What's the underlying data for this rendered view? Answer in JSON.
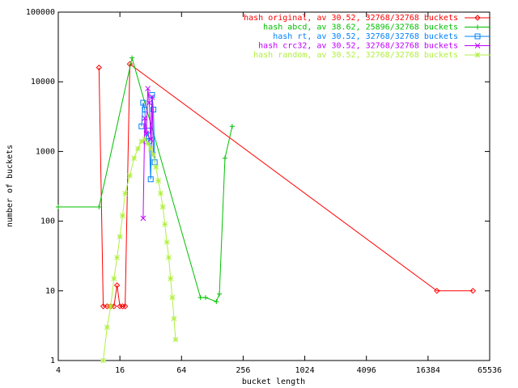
{
  "chart_data": {
    "type": "line",
    "xscale": "log",
    "yscale": "log",
    "xlabel": "bucket length",
    "ylabel": "number of buckets",
    "xlim": [
      4,
      65536
    ],
    "ylim": [
      1,
      100000
    ],
    "xticks": [
      4,
      16,
      64,
      256,
      1024,
      4096,
      16384,
      65536
    ],
    "yticks": [
      1,
      10,
      100,
      1000,
      10000,
      100000
    ],
    "legend": "top-right",
    "series": [
      {
        "name": "hash original, av 30.52, 32768/32768 buckets",
        "color": "#ff0000",
        "marker": "diamond",
        "x": [
          10,
          11,
          12,
          13,
          14,
          15,
          16,
          17,
          18,
          20,
          20000,
          45000
        ],
        "values": [
          16000,
          6,
          6,
          6,
          6,
          12,
          6,
          6,
          6,
          18000,
          10,
          10
        ]
      },
      {
        "name": "hash abcd, av 38.62, 25896/32768 buckets",
        "color": "#00c000",
        "marker": "plus",
        "x": [
          4,
          10,
          21,
          98,
          110,
          140,
          150,
          170,
          200
        ],
        "values": [
          160,
          160,
          22000,
          8,
          8,
          7,
          9,
          800,
          2300
        ]
      },
      {
        "name": "hash rt, av 30.52, 32768/32768 buckets",
        "color": "#0080ff",
        "marker": "square",
        "x": [
          26,
          27,
          28,
          29,
          30,
          31,
          32,
          33,
          34,
          35
        ],
        "values": [
          2300,
          5000,
          4000,
          1400,
          2000,
          1400,
          400,
          6500,
          4000,
          700
        ]
      },
      {
        "name": "hash crc32, av 30.52, 32768/32768 buckets",
        "color": "#c000ff",
        "marker": "cross",
        "x": [
          27,
          28,
          29,
          30,
          31,
          32,
          33,
          34
        ],
        "values": [
          110,
          3000,
          1800,
          8000,
          5000,
          1500,
          6000,
          900
        ]
      },
      {
        "name": "hash random, av 30.52, 32768/32768 buckets",
        "color": "#b0f040",
        "marker": "star",
        "x": [
          11,
          12,
          13,
          14,
          15,
          16,
          17,
          18,
          20,
          22,
          24,
          26,
          28,
          30,
          32,
          34,
          36,
          38,
          40,
          42,
          44,
          46,
          48,
          50,
          52,
          54,
          56
        ],
        "values": [
          1,
          3,
          6,
          15,
          30,
          60,
          120,
          250,
          450,
          800,
          1100,
          1400,
          1500,
          1300,
          1100,
          900,
          600,
          380,
          250,
          160,
          90,
          50,
          30,
          15,
          8,
          4,
          2
        ]
      }
    ]
  }
}
